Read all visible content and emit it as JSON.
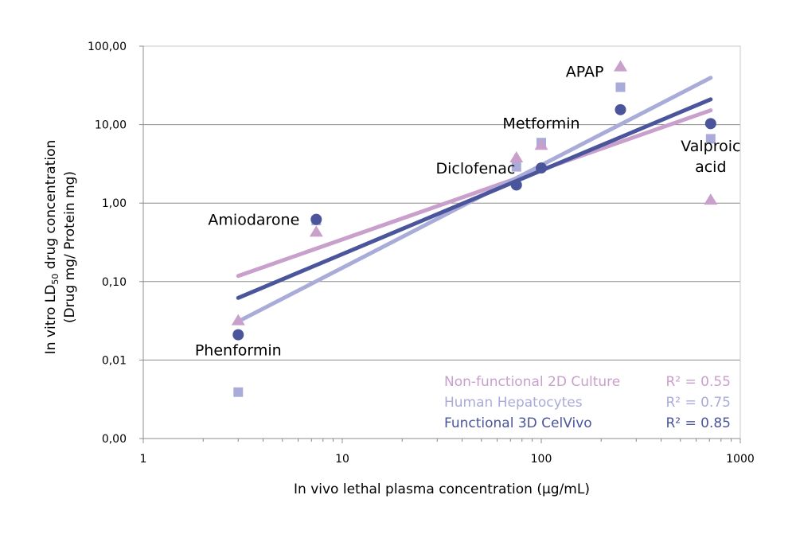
{
  "chart_data": {
    "type": "scatter",
    "x_scale": "log",
    "y_scale": "log",
    "xlim": [
      1,
      1000
    ],
    "ylim": [
      0.001,
      100
    ],
    "x_ticks": [
      {
        "value": 1,
        "label": "1"
      },
      {
        "value": 10,
        "label": "10"
      },
      {
        "value": 100,
        "label": "100"
      },
      {
        "value": 1000,
        "label": "1000"
      }
    ],
    "y_ticks": [
      {
        "value": 0.001,
        "label": "0,00"
      },
      {
        "value": 0.01,
        "label": "0,01"
      },
      {
        "value": 0.1,
        "label": "0,10"
      },
      {
        "value": 1,
        "label": "1,00"
      },
      {
        "value": 10,
        "label": "10,00"
      },
      {
        "value": 100,
        "label": "100,00"
      }
    ],
    "xlabel": "In vivo lethal plasma concentration (µg/mL)",
    "ylabel": {
      "line1_pre": "In vitro LD",
      "line1_sub": "50",
      "line1_post": " drug concentration",
      "line2": "(Drug mg/ Protein mg)"
    },
    "grid": "horizontal",
    "legend_position": "bottom-right",
    "series": [
      {
        "name": "Non-functional 2D Culture",
        "r2": "R² = 0.55",
        "color": "#C9A0CC",
        "marker": "triangle",
        "points": [
          {
            "x": 3.0,
            "y": 0.032
          },
          {
            "x": 7.4,
            "y": 0.43
          },
          {
            "x": 75,
            "y": 3.8
          },
          {
            "x": 100,
            "y": 5.5
          },
          {
            "x": 250,
            "y": 55
          },
          {
            "x": 710,
            "y": 1.1
          }
        ],
        "trendline": {
          "x": [
            3.0,
            710
          ],
          "y": [
            0.118,
            15.2
          ]
        }
      },
      {
        "name": "Human Hepatocytes",
        "r2": "R² = 0.75",
        "color": "#A9ACD9",
        "marker": "square",
        "points": [
          {
            "x": 3.0,
            "y": 0.0039
          },
          {
            "x": 7.4,
            "y": 0.6
          },
          {
            "x": 75,
            "y": 2.9
          },
          {
            "x": 100,
            "y": 5.9
          },
          {
            "x": 250,
            "y": 30
          },
          {
            "x": 710,
            "y": 6.6
          }
        ],
        "trendline": {
          "x": [
            3.0,
            710
          ],
          "y": [
            0.031,
            39.5
          ]
        }
      },
      {
        "name": "Functional 3D CelVivo",
        "r2": "R² = 0.85",
        "color": "#4A559C",
        "marker": "circle",
        "points": [
          {
            "x": 3.0,
            "y": 0.021
          },
          {
            "x": 7.4,
            "y": 0.62
          },
          {
            "x": 75,
            "y": 1.7
          },
          {
            "x": 100,
            "y": 2.8
          },
          {
            "x": 250,
            "y": 15.5
          },
          {
            "x": 710,
            "y": 10.3
          }
        ],
        "trendline": {
          "x": [
            3.0,
            710
          ],
          "y": [
            0.062,
            21
          ]
        }
      }
    ],
    "annotations": [
      {
        "lines": [
          "Phenformin"
        ],
        "x": 3.0,
        "y": 0.0135,
        "anchor": "middle"
      },
      {
        "lines": [
          "Amiodarone"
        ],
        "x": 7.4,
        "y": 0.62,
        "anchor": "end"
      },
      {
        "lines": [
          "Diclofenac"
        ],
        "x": 74,
        "y": 2.8,
        "anchor": "end"
      },
      {
        "lines": [
          "Metformin"
        ],
        "x": 100,
        "y": 10.5,
        "anchor": "middle"
      },
      {
        "lines": [
          "APAP"
        ],
        "x": 250,
        "y": 48,
        "anchor": "end"
      },
      {
        "lines": [
          "Valproic",
          "acid"
        ],
        "x": 710,
        "y": 5.4,
        "anchor": "middle"
      }
    ]
  }
}
